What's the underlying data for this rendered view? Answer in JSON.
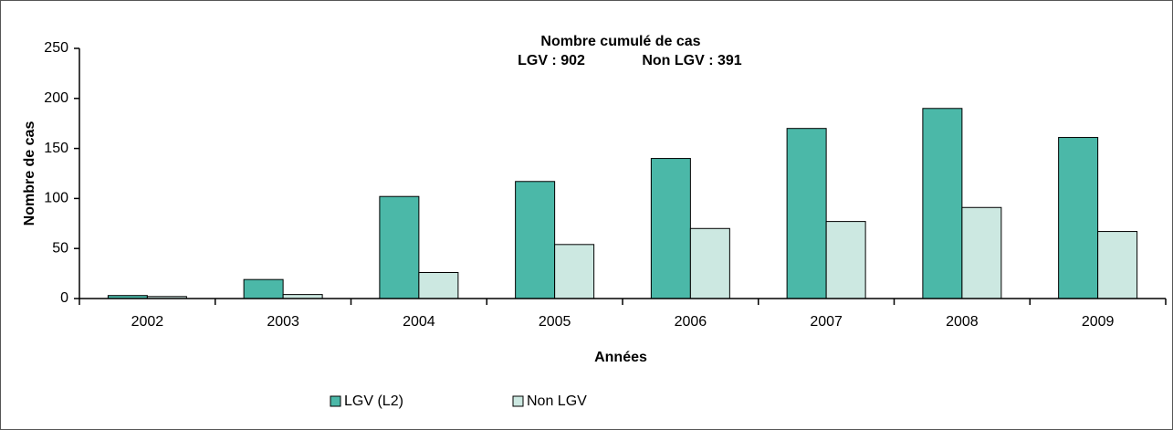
{
  "chart_data": {
    "type": "bar",
    "title": "Nombre cumulé de cas",
    "annotations": [
      "LGV : 902",
      "Non LGV : 391"
    ],
    "xlabel": "Années",
    "ylabel": "Nombre de cas",
    "categories": [
      "2002",
      "2003",
      "2004",
      "2005",
      "2006",
      "2007",
      "2008",
      "2009"
    ],
    "series": [
      {
        "name": "LGV (L2)",
        "color": "#4bb8a8",
        "values": [
          3,
          19,
          102,
          117,
          140,
          170,
          190,
          161
        ]
      },
      {
        "name": "Non LGV",
        "color": "#cce8e1",
        "values": [
          2,
          4,
          26,
          54,
          70,
          77,
          91,
          67
        ]
      }
    ],
    "ylim": [
      0,
      250
    ],
    "yticks": [
      0,
      50,
      100,
      150,
      200,
      250
    ],
    "grid": false,
    "legend": "bottom"
  }
}
